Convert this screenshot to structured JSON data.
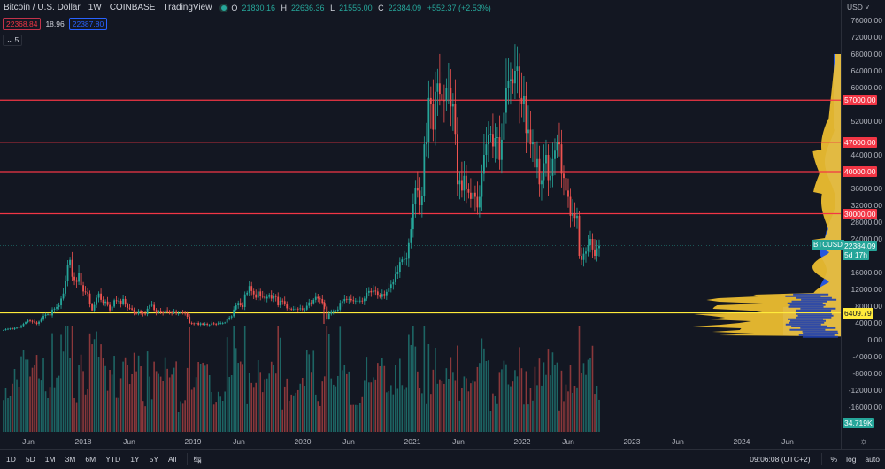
{
  "header": {
    "symbol": "Bitcoin / U.S. Dollar",
    "interval": "1W",
    "exchange": "COINBASE",
    "source": "TradingView",
    "status_color": "#26a69a",
    "ohlc": {
      "o_label": "O",
      "open": "21830.16",
      "h_label": "H",
      "high": "22636.36",
      "l_label": "L",
      "low": "21555.00",
      "c_label": "C",
      "close": "22384.09",
      "change": "+552.37 (+2.53%)"
    },
    "bid": "22368.84",
    "spread": "18.96",
    "ask": "22387.80",
    "indicators_collapsed": "5"
  },
  "price_scale": {
    "currency": "USD",
    "labels": [
      "76000.00",
      "72000.00",
      "68000.00",
      "64000.00",
      "60000.00",
      "52000.00",
      "44000.00",
      "36000.00",
      "32000.00",
      "28000.00",
      "24000.00",
      "16000.00",
      "12000.00",
      "8000.00",
      "4000.00",
      "0.00",
      "-4000.00",
      "-8000.00",
      "-12000.00",
      "-16000.00"
    ],
    "tags": [
      {
        "label": "57000.00",
        "color": "#f23645"
      },
      {
        "label": "47000.00",
        "color": "#f23645"
      },
      {
        "label": "40000.00",
        "color": "#f23645"
      },
      {
        "label": "30000.00",
        "color": "#f23645"
      },
      {
        "label": "6409.79",
        "color": "#ffeb3b",
        "text": "#131722"
      }
    ],
    "symbol_tag": {
      "label": "BTCUSD",
      "price": "22384.09",
      "countdown": "5d 17h",
      "color": "#26a69a"
    },
    "volume_tag": {
      "label": "34.719K",
      "color": "#26a69a"
    }
  },
  "time_axis": {
    "labels": [
      "Jun",
      "2018",
      "Jun",
      "2019",
      "Jun",
      "2020",
      "Jun",
      "2021",
      "Jun",
      "2022",
      "Jun",
      "2023",
      "Jun",
      "2024",
      "Jun"
    ]
  },
  "bottom_bar": {
    "ranges": [
      "1D",
      "5D",
      "1M",
      "3M",
      "6M",
      "YTD",
      "1Y",
      "5Y",
      "All"
    ],
    "clock": "09:06:08 (UTC+2)",
    "percent": "%",
    "log": "log",
    "auto": "auto"
  },
  "chart_data": {
    "type": "candlestick",
    "title": "Bitcoin / U.S. Dollar 1W COINBASE",
    "xlabel": "",
    "ylabel": "USD",
    "ylim": [
      -18000,
      78000
    ],
    "grid": false,
    "x_ticks": [
      "Jun 2017",
      "2018",
      "Jun 2018",
      "2019",
      "Jun 2019",
      "2020",
      "Jun 2020",
      "2021",
      "Jun 2021",
      "2022",
      "Jun 2022",
      "2023",
      "Jun 2023",
      "2024",
      "Jun 2024"
    ],
    "horizontal_lines": [
      {
        "price": 57000,
        "color": "#f23645"
      },
      {
        "price": 47000,
        "color": "#f23645"
      },
      {
        "price": 40000,
        "color": "#f23645"
      },
      {
        "price": 30000,
        "color": "#f23645"
      },
      {
        "price": 6409.79,
        "color": "#ffeb3b"
      }
    ],
    "last_price": 22384.09,
    "weekly_closes_approx": [
      2300,
      2500,
      2600,
      2700,
      2500,
      2800,
      3000,
      2900,
      3300,
      3800,
      4200,
      4600,
      4500,
      4300,
      4100,
      3800,
      4300,
      4800,
      5700,
      6000,
      6100,
      5800,
      7200,
      7400,
      7800,
      8200,
      9800,
      11000,
      14000,
      17800,
      19000,
      15000,
      14200,
      13800,
      16000,
      13000,
      11500,
      11300,
      11000,
      8500,
      7000,
      8300,
      10000,
      11000,
      9500,
      8800,
      9100,
      8300,
      7000,
      7900,
      9400,
      9200,
      9300,
      8600,
      9700,
      8400,
      7600,
      7500,
      7200,
      6400,
      6200,
      6700,
      6500,
      6200,
      6100,
      7400,
      8200,
      8300,
      7100,
      6400,
      6900,
      6500,
      6300,
      7000,
      6600,
      6500,
      6400,
      6600,
      6300,
      6300,
      6500,
      6400,
      6300,
      5500,
      4000,
      3900,
      3800,
      4000,
      3600,
      3900,
      3600,
      3800,
      3600,
      3600,
      3900,
      3800,
      3700,
      3900,
      4000,
      4000,
      4100,
      5000,
      5300,
      5600,
      7200,
      8200,
      8800,
      8200,
      7800,
      10800,
      11200,
      12800,
      11600,
      10800,
      10000,
      11500,
      10400,
      10300,
      9800,
      10200,
      10700,
      9800,
      10400,
      10200,
      8200,
      9300,
      9200,
      8400,
      7500,
      7400,
      7200,
      7300,
      7400,
      7300,
      7500,
      7200,
      7200,
      8100,
      8900,
      8700,
      9500,
      10200,
      9800,
      9700,
      8800,
      7900,
      5000,
      6200,
      6600,
      6800,
      6900,
      7200,
      8800,
      9200,
      9700,
      9600,
      9700,
      9400,
      9200,
      9300,
      9300,
      9300,
      9200,
      9800,
      11200,
      11600,
      11300,
      11700,
      11500,
      10700,
      10200,
      10900,
      10600,
      11400,
      12200,
      13200,
      13700,
      15600,
      16200,
      18500,
      19100,
      19200,
      19300,
      23000,
      26300,
      32200,
      36000,
      35500,
      32000,
      34200,
      46500,
      47000,
      57500,
      56000,
      50000,
      59000,
      61000,
      58500,
      57000,
      56800,
      59800,
      60000,
      55500,
      56000,
      49000,
      37000,
      38000,
      35500,
      39000,
      35800,
      35000,
      33500,
      35000,
      34000,
      31500,
      34000,
      39500,
      44000,
      46500,
      48800,
      49000,
      46000,
      48000,
      48200,
      42800,
      47600,
      54000,
      60000,
      61500,
      62000,
      61000,
      64000,
      65000,
      57500,
      56000,
      58000,
      49200,
      50000,
      46500,
      47000,
      41000,
      43000,
      37000,
      38000,
      42000,
      44000,
      38000,
      39000,
      43000,
      45000,
      47000,
      46500,
      39500,
      38500,
      35500,
      34000,
      29500,
      30000,
      29000,
      29500,
      20000,
      19000,
      20500,
      21000,
      22500,
      24000,
      21500,
      20000,
      21800,
      22384
    ]
  }
}
